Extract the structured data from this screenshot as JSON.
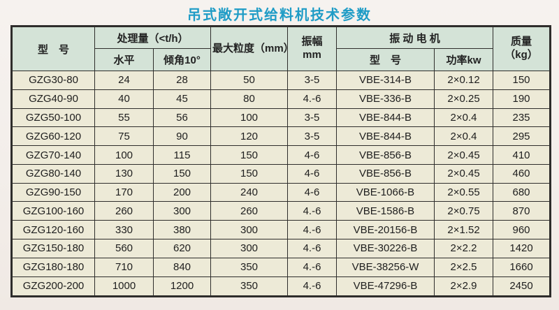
{
  "title": "吊式敞开式给料机技术参数",
  "colors": {
    "title": "#1f9cc6",
    "header_bg": "#d4e3d7",
    "cell_bg": "#edead7",
    "border": "#2e2d2b",
    "page_bg": "#f3eeea"
  },
  "table": {
    "headers": {
      "model": "型　号",
      "capacity_group": "处理量（<t/h）",
      "capacity_horizontal": "水平",
      "capacity_incline": "倾角10°",
      "max_size": "最大粒度（mm）",
      "amplitude_line1": "振幅",
      "amplitude_line2": "mm",
      "motor_group": "振 动 电 机",
      "motor_model": "型　号",
      "motor_power": "功率kw",
      "mass_line1": "质量",
      "mass_line2": "（kg）"
    },
    "rows": [
      {
        "model": "GZG30-80",
        "horizontal": "24",
        "incline": "28",
        "max_size": "50",
        "amplitude": "3-5",
        "motor_model": "VBE-314-B",
        "power": "2×0.12",
        "mass": "150"
      },
      {
        "model": "GZG40-90",
        "horizontal": "40",
        "incline": "45",
        "max_size": "80",
        "amplitude": "4.-6",
        "motor_model": "VBE-336-B",
        "power": "2×0.25",
        "mass": "190"
      },
      {
        "model": "GZG50-100",
        "horizontal": "55",
        "incline": "56",
        "max_size": "100",
        "amplitude": "3-5",
        "motor_model": "VBE-844-B",
        "power": "2×0.4",
        "mass": "235"
      },
      {
        "model": "GZG60-120",
        "horizontal": "75",
        "incline": "90",
        "max_size": "120",
        "amplitude": "3-5",
        "motor_model": "VBE-844-B",
        "power": "2×0.4",
        "mass": "295"
      },
      {
        "model": "GZG70-140",
        "horizontal": "100",
        "incline": "115",
        "max_size": "150",
        "amplitude": "4-6",
        "motor_model": "VBE-856-B",
        "power": "2×0.45",
        "mass": "410"
      },
      {
        "model": "GZG80-140",
        "horizontal": "130",
        "incline": "150",
        "max_size": "150",
        "amplitude": "4-6",
        "motor_model": "VBE-856-B",
        "power": "2×0.45",
        "mass": "460"
      },
      {
        "model": "GZG90-150",
        "horizontal": "170",
        "incline": "200",
        "max_size": "240",
        "amplitude": "4-6",
        "motor_model": "VBE-1066-B",
        "power": "2×0.55",
        "mass": "680"
      },
      {
        "model": "GZG100-160",
        "horizontal": "260",
        "incline": "300",
        "max_size": "260",
        "amplitude": "4.-6",
        "motor_model": "VBE-1586-B",
        "power": "2×0.75",
        "mass": "870"
      },
      {
        "model": "GZG120-160",
        "horizontal": "330",
        "incline": "380",
        "max_size": "300",
        "amplitude": "4.-6",
        "motor_model": "VBE-20156-B",
        "power": "2×1.52",
        "mass": "960"
      },
      {
        "model": "GZG150-180",
        "horizontal": "560",
        "incline": "620",
        "max_size": "300",
        "amplitude": "4.-6",
        "motor_model": "VBE-30226-B",
        "power": "2×2.2",
        "mass": "1420"
      },
      {
        "model": "GZG180-180",
        "horizontal": "710",
        "incline": "840",
        "max_size": "350",
        "amplitude": "4.-6",
        "motor_model": "VBE-38256-W",
        "power": "2×2.5",
        "mass": "1660"
      },
      {
        "model": "GZG200-200",
        "horizontal": "1000",
        "incline": "1200",
        "max_size": "350",
        "amplitude": "4.-6",
        "motor_model": "VBE-47296-B",
        "power": "2×2.9",
        "mass": "2450"
      }
    ]
  }
}
